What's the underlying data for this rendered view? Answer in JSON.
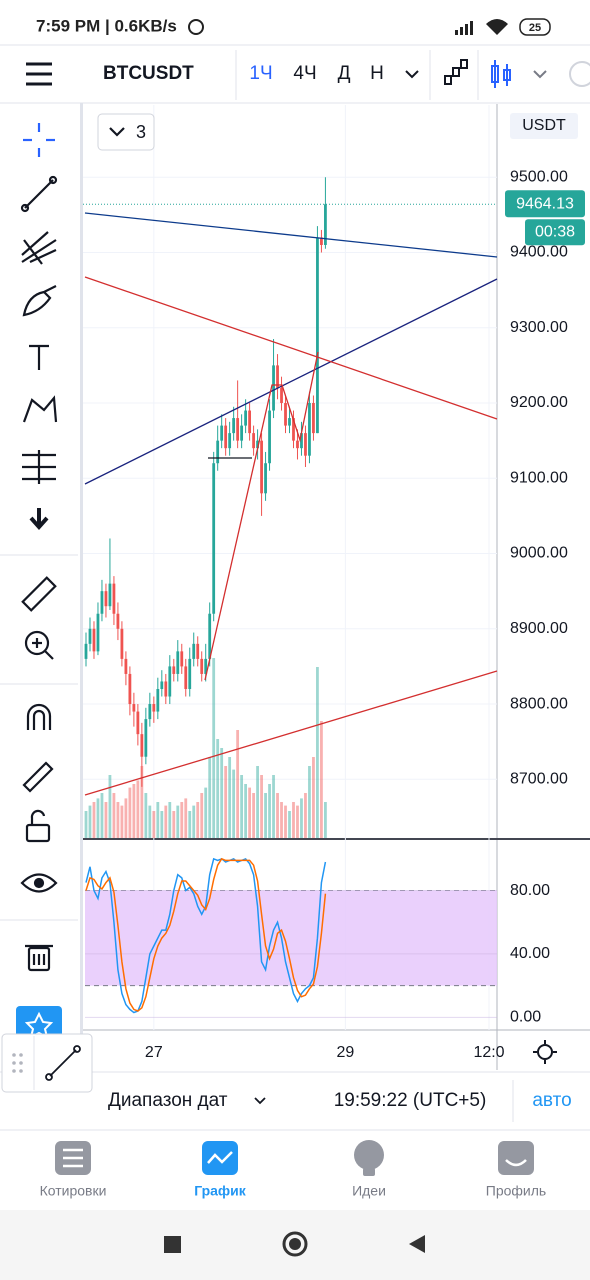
{
  "status_bar": {
    "time": "7:59 PM | 0.6KB/s",
    "battery": "25"
  },
  "toolbar": {
    "symbol": "BTCUSDT",
    "timeframes": [
      "1Ч",
      "4Ч",
      "Д",
      "Н"
    ],
    "indicators": "3"
  },
  "chart_data": {
    "type": "candlestick",
    "currency": "USDT",
    "xlim": [
      -0.25,
      103
    ],
    "xticks": [
      {
        "value": 17,
        "label": "27"
      },
      {
        "value": 65,
        "label": "29"
      },
      {
        "value": 101,
        "label": "12:0"
      }
    ],
    "ylim": [
      8622,
      9596
    ],
    "yticks": [
      {
        "value": 8700,
        "label": "8700.00"
      },
      {
        "value": 8800,
        "label": "8800.00"
      },
      {
        "value": 8900,
        "label": "8900.00"
      },
      {
        "value": 9000,
        "label": "9000.00"
      },
      {
        "value": 9100,
        "label": "9100.00"
      },
      {
        "value": 9200,
        "label": "9200.00"
      },
      {
        "value": 9300,
        "label": "9300.00"
      },
      {
        "value": 9400,
        "label": "9400.00"
      },
      {
        "value": 9500,
        "label": "9500.00"
      }
    ],
    "up_color": "#26a69a",
    "down_color": "#ef5350",
    "open": [
      8860,
      8880,
      8900,
      8870,
      8920,
      8950,
      8930,
      8960,
      8920,
      8900,
      8860,
      8840,
      8800,
      8790,
      8760,
      8730,
      8780,
      8800,
      8790,
      8820,
      8830,
      8810,
      8850,
      8840,
      8870,
      8850,
      8820,
      8860,
      8880,
      8860,
      8840,
      8860,
      8920,
      9120,
      9150,
      9170,
      9140,
      9160,
      9180,
      9150,
      9170,
      9190,
      9160,
      9140,
      9150,
      9080,
      9120,
      9190,
      9250,
      9220,
      9200,
      9170,
      9180,
      9150,
      9140,
      9160,
      9130,
      9200,
      9160,
      9420,
      9410
    ],
    "high": [
      8895,
      8915,
      8910,
      8935,
      8965,
      8960,
      9020,
      8970,
      8935,
      8910,
      8870,
      8850,
      8815,
      8800,
      8775,
      8795,
      8815,
      8810,
      8835,
      8845,
      8840,
      8865,
      8860,
      8885,
      8880,
      8860,
      8875,
      8895,
      8890,
      8870,
      8880,
      8935,
      9135,
      9170,
      9185,
      9180,
      9175,
      9195,
      9230,
      9185,
      9205,
      9200,
      9170,
      9165,
      9160,
      9135,
      9205,
      9285,
      9265,
      9235,
      9210,
      9195,
      9190,
      9165,
      9175,
      9170,
      9215,
      9210,
      9435,
      9430,
      9500
    ],
    "low": [
      8850,
      8870,
      8860,
      8865,
      8910,
      8915,
      8925,
      8905,
      8885,
      8850,
      8825,
      8785,
      8770,
      8745,
      8690,
      8720,
      8770,
      8775,
      8780,
      8810,
      8800,
      8800,
      8830,
      8830,
      8840,
      8810,
      8810,
      8850,
      8850,
      8830,
      8830,
      8850,
      8910,
      9110,
      9140,
      9130,
      9130,
      9150,
      9140,
      9140,
      9160,
      9150,
      9130,
      9125,
      9050,
      9070,
      9110,
      9180,
      9205,
      9190,
      9160,
      9160,
      9140,
      9125,
      9130,
      9115,
      9120,
      9150,
      9160,
      9400,
      9405
    ],
    "close": [
      8880,
      8900,
      8870,
      8920,
      8950,
      8930,
      8960,
      8920,
      8900,
      8860,
      8840,
      8800,
      8790,
      8760,
      8730,
      8780,
      8800,
      8790,
      8820,
      8830,
      8810,
      8850,
      8840,
      8870,
      8850,
      8820,
      8860,
      8880,
      8860,
      8840,
      8860,
      8920,
      9120,
      9150,
      9170,
      9140,
      9160,
      9180,
      9150,
      9170,
      9190,
      9160,
      9140,
      9150,
      9080,
      9120,
      9190,
      9250,
      9220,
      9200,
      9170,
      9180,
      9150,
      9140,
      9160,
      9130,
      9200,
      9160,
      9420,
      9410,
      9464
    ],
    "vlim": [
      0,
      100
    ],
    "volume": [
      15,
      18,
      20,
      22,
      25,
      20,
      35,
      25,
      20,
      18,
      22,
      28,
      30,
      32,
      40,
      25,
      18,
      15,
      20,
      15,
      18,
      20,
      15,
      18,
      20,
      22,
      15,
      18,
      20,
      25,
      28,
      45,
      100,
      55,
      50,
      40,
      45,
      38,
      60,
      35,
      30,
      28,
      25,
      40,
      35,
      25,
      30,
      35,
      25,
      20,
      18,
      15,
      20,
      18,
      22,
      25,
      40,
      45,
      95,
      65,
      20
    ],
    "last_price": 9464.13,
    "countdown": "00:38",
    "oscillator": {
      "ylim": [
        -8,
        110
      ],
      "yticks": [
        {
          "value": 0,
          "label": "0.00"
        },
        {
          "value": 40,
          "label": "40.00"
        },
        {
          "value": 80,
          "label": "80.00"
        }
      ],
      "band": [
        20,
        80
      ],
      "band_color": "#e6c8fb",
      "series": [
        {
          "color": "#2196f3",
          "values": [
            85,
            95,
            80,
            75,
            88,
            92,
            85,
            60,
            30,
            15,
            8,
            5,
            3,
            4,
            10,
            25,
            40,
            45,
            50,
            55,
            55,
            65,
            80,
            90,
            88,
            80,
            82,
            78,
            70,
            65,
            70,
            90,
            100,
            99,
            100,
            98,
            99,
            100,
            98,
            99,
            100,
            97,
            90,
            70,
            35,
            30,
            45,
            55,
            60,
            50,
            35,
            25,
            15,
            10,
            15,
            18,
            20,
            25,
            50,
            85,
            98
          ]
        },
        {
          "color": "#ff6d00",
          "values": [
            80,
            88,
            87,
            83,
            81,
            85,
            88,
            79,
            58,
            35,
            18,
            9,
            5,
            4,
            6,
            13,
            25,
            37,
            45,
            50,
            53,
            58,
            67,
            78,
            86,
            86,
            83,
            80,
            77,
            71,
            68,
            75,
            87,
            96,
            100,
            99,
            99,
            99,
            99,
            99,
            99,
            99,
            96,
            86,
            65,
            45,
            37,
            43,
            53,
            55,
            48,
            37,
            25,
            17,
            13,
            14,
            18,
            21,
            32,
            53,
            78
          ]
        }
      ]
    }
  },
  "footer": {
    "date_range": "Диапазон дат",
    "clock": "19:59:22 (UTC+5)",
    "auto": "авто"
  },
  "nav": {
    "items": [
      "Котировки",
      "График",
      "Идеи",
      "Профиль"
    ]
  }
}
